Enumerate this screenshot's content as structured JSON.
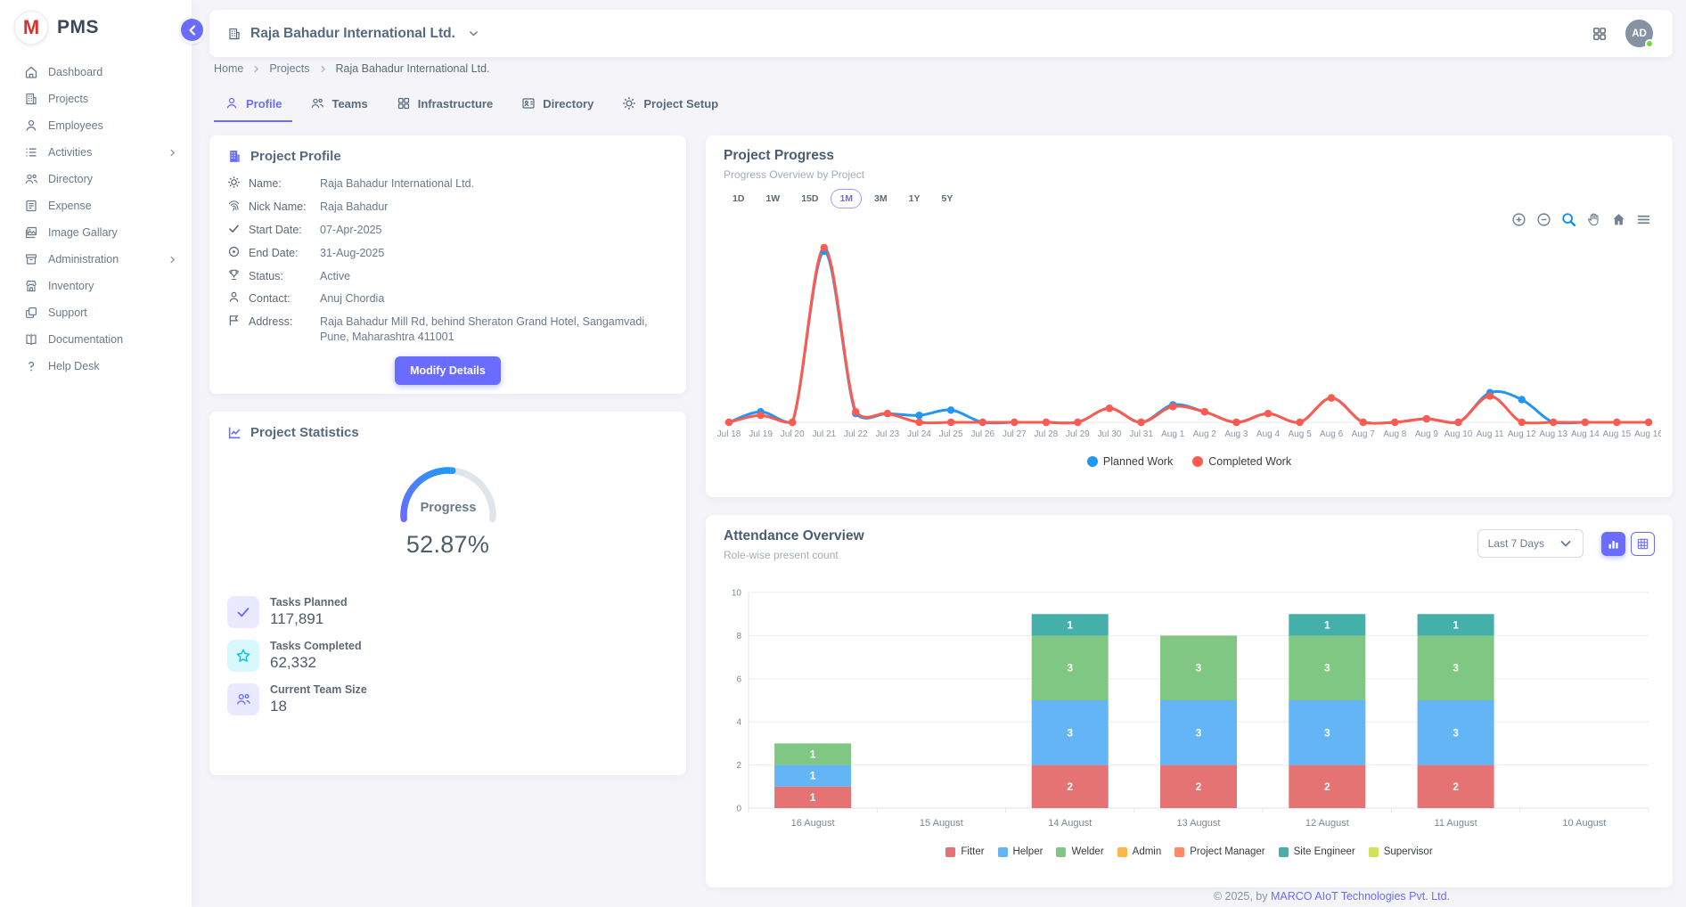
{
  "brand": {
    "logo_letter": "M",
    "app_name": "PMS"
  },
  "sidebar": {
    "items": [
      {
        "label": "Dashboard",
        "icon": "home",
        "chevron": false
      },
      {
        "label": "Projects",
        "icon": "building",
        "chevron": false
      },
      {
        "label": "Employees",
        "icon": "person",
        "chevron": false
      },
      {
        "label": "Activities",
        "icon": "list",
        "chevron": true
      },
      {
        "label": "Directory",
        "icon": "people",
        "chevron": false
      },
      {
        "label": "Expense",
        "icon": "receipt",
        "chevron": false
      },
      {
        "label": "Image Gallary",
        "icon": "image",
        "chevron": false
      },
      {
        "label": "Administration",
        "icon": "archive",
        "chevron": true
      },
      {
        "label": "Inventory",
        "icon": "store",
        "chevron": false
      },
      {
        "label": "Support",
        "icon": "copy",
        "chevron": false
      },
      {
        "label": "Documentation",
        "icon": "book",
        "chevron": false
      },
      {
        "label": "Help Desk",
        "icon": "question",
        "chevron": false
      }
    ]
  },
  "header": {
    "company_selector": "Raja Bahadur International Ltd.",
    "avatar_initials": "AD"
  },
  "breadcrumb": [
    "Home",
    "Projects",
    "Raja Bahadur International Ltd."
  ],
  "tabs": [
    {
      "label": "Profile",
      "icon": "person",
      "active": true
    },
    {
      "label": "Teams",
      "icon": "people",
      "active": false
    },
    {
      "label": "Infrastructure",
      "icon": "grid4",
      "active": false
    },
    {
      "label": "Directory",
      "icon": "idcard",
      "active": false
    },
    {
      "label": "Project Setup",
      "icon": "gear",
      "active": false
    }
  ],
  "profile_card": {
    "title": "Project Profile",
    "fields": [
      {
        "icon": "gear",
        "label": "Name:",
        "value": "Raja Bahadur International Ltd."
      },
      {
        "icon": "fingerprint",
        "label": "Nick Name:",
        "value": "Raja Bahadur"
      },
      {
        "icon": "check",
        "label": "Start Date:",
        "value": "07-Apr-2025"
      },
      {
        "icon": "target",
        "label": "End Date:",
        "value": "31-Aug-2025"
      },
      {
        "icon": "trophy",
        "label": "Status:",
        "value": "Active"
      },
      {
        "icon": "person",
        "label": "Contact:",
        "value": "Anuj Chordia"
      },
      {
        "icon": "flag",
        "label": "Address:",
        "value": "Raja Bahadur Mill Rd, behind Sheraton Grand Hotel, Sangamvadi, Pune, Maharashtra 411001"
      }
    ],
    "button_label": "Modify Details"
  },
  "stats_card": {
    "title": "Project Statistics",
    "gauge": {
      "label": "Progress",
      "value_text": "52.87%",
      "percent": 52.87
    },
    "stats": [
      {
        "icon": "check",
        "label": "Tasks Planned",
        "value": "117,891",
        "theme": "purple"
      },
      {
        "icon": "star",
        "label": "Tasks Completed",
        "value": "62,332",
        "theme": "cyan"
      },
      {
        "icon": "people",
        "label": "Current Team Size",
        "value": "18",
        "theme": "purple"
      }
    ]
  },
  "progress_card": {
    "title": "Project Progress",
    "subtitle": "Progress Overview by Project",
    "ranges": [
      "1D",
      "1W",
      "15D",
      "1M",
      "3M",
      "1Y",
      "5Y"
    ],
    "active_range": "1M",
    "toolbar": [
      "zoom-in",
      "zoom-out",
      "selection-zoom",
      "pan",
      "reset-zoom",
      "menu"
    ]
  },
  "attendance_card": {
    "title": "Attendance Overview",
    "subtitle": "Role-wise present count",
    "range_select": "Last 7 Days",
    "active_toggle": "bar-view"
  },
  "footer": {
    "text": "© 2025, by ",
    "link": "MARCO AIoT Technologies Pvt. Ltd."
  },
  "chart_data": [
    {
      "id": "project-progress",
      "type": "line",
      "title": "Project Progress",
      "x": [
        "Jul 18",
        "Jul 19",
        "Jul 20",
        "Jul 21",
        "Jul 22",
        "Jul 23",
        "Jul 24",
        "Jul 25",
        "Jul 26",
        "Jul 27",
        "Jul 28",
        "Jul 29",
        "Jul 30",
        "Jul 31",
        "Aug 1",
        "Aug 2",
        "Aug 3",
        "Aug 4",
        "Aug 5",
        "Aug 6",
        "Aug 7",
        "Aug 8",
        "Aug 9",
        "Aug 10",
        "Aug 11",
        "Aug 12",
        "Aug 13",
        "Aug 14",
        "Aug 15",
        "Aug 16"
      ],
      "series": [
        {
          "name": "Planned Work",
          "color": "#2196f3",
          "values": [
            0,
            6,
            0,
            98,
            5,
            5,
            4,
            7,
            0,
            0,
            0,
            0,
            8,
            0,
            10,
            6,
            0,
            5,
            0,
            14,
            0,
            0,
            2,
            0,
            17,
            13,
            0,
            0,
            0,
            0
          ]
        },
        {
          "name": "Completed Work",
          "color": "#ff5a4e",
          "values": [
            0,
            4,
            0,
            100,
            6,
            5,
            0,
            0,
            0,
            0,
            0,
            0,
            8,
            0,
            9,
            6,
            0,
            5,
            0,
            14,
            0,
            0,
            2,
            0,
            15,
            0,
            0,
            0,
            0,
            0
          ]
        }
      ],
      "ylim": [
        0,
        100
      ],
      "y_axis_labels": false,
      "grid": false,
      "legend_position": "bottom"
    },
    {
      "id": "attendance-overview",
      "type": "bar",
      "stacked": true,
      "title": "Attendance Overview",
      "categories": [
        "16 August",
        "15 August",
        "14 August",
        "13 August",
        "12 August",
        "11 August",
        "10 August"
      ],
      "series": [
        {
          "name": "Fitter",
          "color": "#e57373",
          "values": [
            1,
            0,
            2,
            2,
            2,
            2,
            0
          ]
        },
        {
          "name": "Helper",
          "color": "#64b5f6",
          "values": [
            1,
            0,
            3,
            3,
            3,
            3,
            0
          ]
        },
        {
          "name": "Welder",
          "color": "#81c784",
          "values": [
            1,
            0,
            3,
            3,
            3,
            3,
            0
          ]
        },
        {
          "name": "Admin",
          "color": "#ffb74d",
          "values": [
            0,
            0,
            0,
            0,
            0,
            0,
            0
          ]
        },
        {
          "name": "Project Manager",
          "color": "#ff8a65",
          "values": [
            0,
            0,
            0,
            0,
            0,
            0,
            0
          ]
        },
        {
          "name": "Site Engineer",
          "color": "#45b0aa",
          "values": [
            0,
            0,
            1,
            0,
            1,
            1,
            0
          ]
        },
        {
          "name": "Supervisor",
          "color": "#d4e157",
          "values": [
            0,
            0,
            0,
            0,
            0,
            0,
            0
          ]
        }
      ],
      "ylim": [
        0,
        10
      ],
      "y_ticks": [
        0,
        2,
        4,
        6,
        8,
        10
      ],
      "grid": true,
      "data_labels": true,
      "legend_position": "bottom"
    }
  ]
}
